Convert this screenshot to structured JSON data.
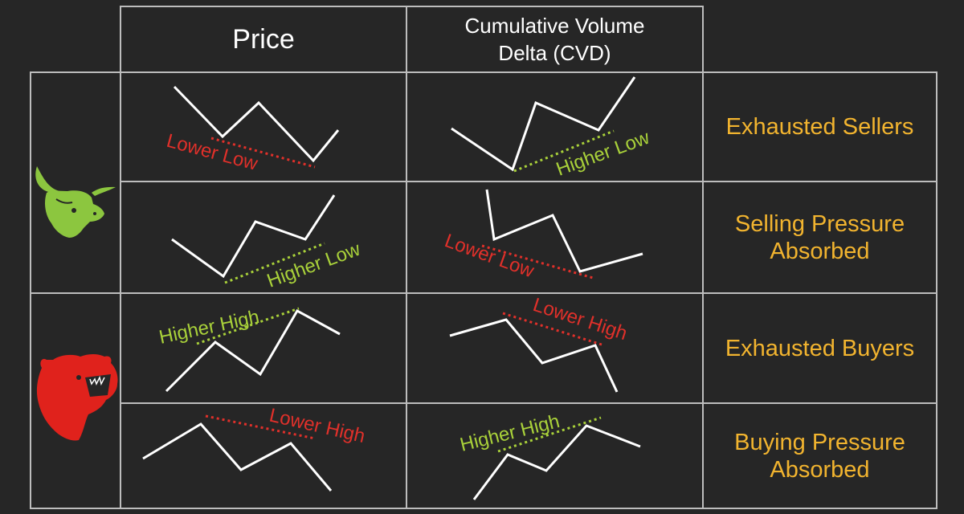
{
  "headers": {
    "price": "Price",
    "cvd_line1": "Cumulative Volume",
    "cvd_line2": "Delta (CVD)"
  },
  "rows": [
    {
      "price_label": "Lower Low",
      "price_label_color": "#e0302a",
      "cvd_label": "Higher Low",
      "cvd_label_color": "#a9d13a",
      "result_line1": "Exhausted Sellers",
      "result_line2": ""
    },
    {
      "price_label": "Higher Low",
      "price_label_color": "#a9d13a",
      "cvd_label": "Lower Low",
      "cvd_label_color": "#e0302a",
      "result_line1": "Selling Pressure",
      "result_line2": "Absorbed"
    },
    {
      "price_label": "Higher High",
      "price_label_color": "#a9d13a",
      "cvd_label": "Lower High",
      "cvd_label_color": "#e0302a",
      "result_line1": "Exhausted Buyers",
      "result_line2": ""
    },
    {
      "price_label": "Lower High",
      "price_label_color": "#e0302a",
      "cvd_label": "Higher High",
      "cvd_label_color": "#a9d13a",
      "result_line1": "Buying Pressure",
      "result_line2": "Absorbed"
    }
  ],
  "icons": {
    "bull": "bull-head-icon",
    "bear": "bear-head-icon",
    "bull_color": "#8cc63f",
    "bear_color": "#e0221c"
  },
  "colors": {
    "background": "#262626",
    "grid": "#bdbdbd",
    "result_text": "#f2b42f",
    "bullish": "#a9d13a",
    "bearish": "#e0302a"
  }
}
